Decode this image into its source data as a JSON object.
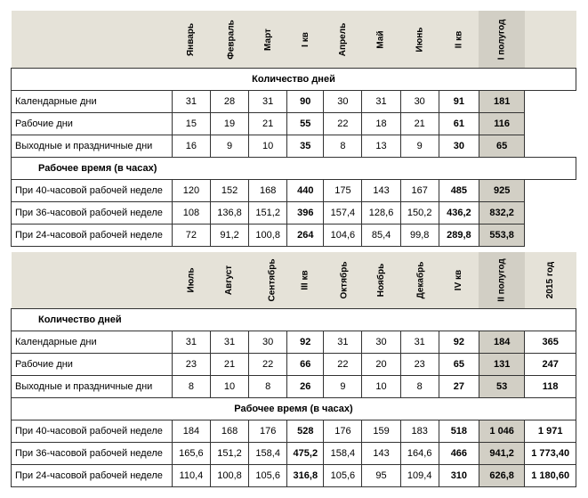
{
  "months1": [
    "Январь",
    "Февраль",
    "Март",
    "I кв",
    "Апрель",
    "Май",
    "Июнь",
    "II кв",
    "I полугод"
  ],
  "months2": [
    "Июль",
    "Август",
    "Сентябрь",
    "III кв",
    "Октябрь",
    "Ноябрь",
    "Декабрь",
    "IV кв",
    "II полугод",
    "2015 год"
  ],
  "section_days": "Количество дней",
  "section_hours": "Рабочее время (в часах)",
  "rows1": [
    {
      "label": "Календарные дни",
      "v": [
        "31",
        "28",
        "31",
        "90",
        "30",
        "31",
        "30",
        "91",
        "181"
      ]
    },
    {
      "label": "Рабочие дни",
      "v": [
        "15",
        "19",
        "21",
        "55",
        "22",
        "18",
        "21",
        "61",
        "116"
      ]
    },
    {
      "label": "Выходные и праздничные дни",
      "v": [
        "16",
        "9",
        "10",
        "35",
        "8",
        "13",
        "9",
        "30",
        "65"
      ]
    }
  ],
  "hours1": [
    {
      "label": "При 40-часовой рабочей неделе",
      "v": [
        "120",
        "152",
        "168",
        "440",
        "175",
        "143",
        "167",
        "485",
        "925"
      ]
    },
    {
      "label": "При 36-часовой рабочей неделе",
      "v": [
        "108",
        "136,8",
        "151,2",
        "396",
        "157,4",
        "128,6",
        "150,2",
        "436,2",
        "832,2"
      ]
    },
    {
      "label": "При 24-часовой рабочей неделе",
      "v": [
        "72",
        "91,2",
        "100,8",
        "264",
        "104,6",
        "85,4",
        "99,8",
        "289,8",
        "553,8"
      ]
    }
  ],
  "rows2": [
    {
      "label": "Календарные дни",
      "v": [
        "31",
        "31",
        "30",
        "92",
        "31",
        "30",
        "31",
        "92",
        "184",
        "365"
      ]
    },
    {
      "label": "Рабочие дни",
      "v": [
        "23",
        "21",
        "22",
        "66",
        "22",
        "20",
        "23",
        "65",
        "131",
        "247"
      ]
    },
    {
      "label": "Выходные и праздничные дни",
      "v": [
        "8",
        "10",
        "8",
        "26",
        "9",
        "10",
        "8",
        "27",
        "53",
        "118"
      ]
    }
  ],
  "hours2": [
    {
      "label": "При 40-часовой рабочей неделе",
      "v": [
        "184",
        "168",
        "176",
        "528",
        "176",
        "159",
        "183",
        "518",
        "1 046",
        "1 971"
      ]
    },
    {
      "label": "При 36-часовой рабочей неделе",
      "v": [
        "165,6",
        "151,2",
        "158,4",
        "475,2",
        "158,4",
        "143",
        "164,6",
        "466",
        "941,2",
        "1 773,40"
      ]
    },
    {
      "label": "При 24-часовой рабочей неделе",
      "v": [
        "110,4",
        "100,8",
        "105,6",
        "316,8",
        "105,6",
        "95",
        "109,4",
        "310",
        "626,8",
        "1 180,60"
      ]
    }
  ],
  "bold_cols1": [
    3,
    7,
    8
  ],
  "grey_cols1": [
    8
  ],
  "bold_cols2": [
    3,
    7,
    8,
    9
  ],
  "grey_cols2": [
    8
  ],
  "year_col": 9
}
